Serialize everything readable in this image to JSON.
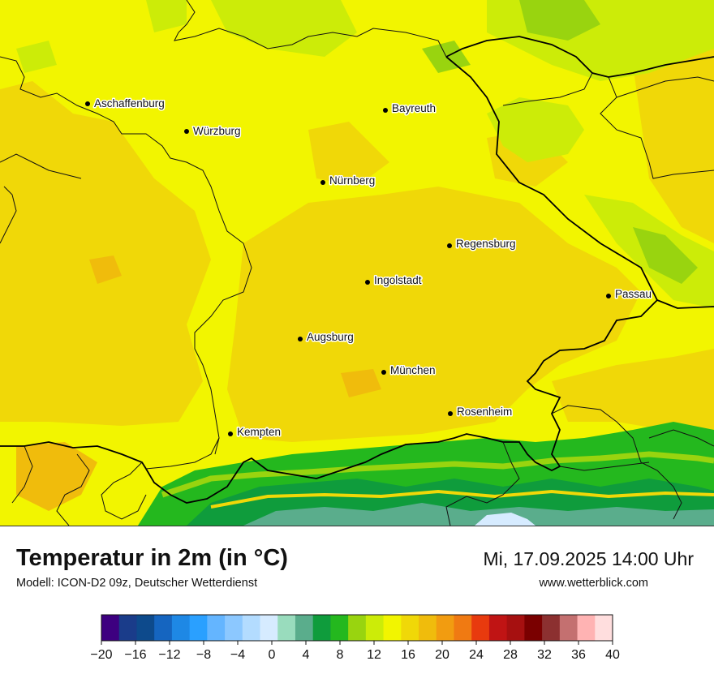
{
  "title": "Temperatur in 2m (in °C)",
  "subtitle": "Modell: ICON-D2 09z, Deutscher Wetterdienst",
  "datetime": "Mi, 17.09.2025 14:00 Uhr",
  "website": "www.wetterblick.com",
  "cities": [
    {
      "name": "Aschaffenburg"
    },
    {
      "name": "Würzburg"
    },
    {
      "name": "Bayreuth"
    },
    {
      "name": "Nürnberg"
    },
    {
      "name": "Regensburg"
    },
    {
      "name": "Ingolstadt"
    },
    {
      "name": "Passau"
    },
    {
      "name": "Augsburg"
    },
    {
      "name": "München"
    },
    {
      "name": "Rosenheim"
    },
    {
      "name": "Kempten"
    }
  ],
  "legend": {
    "colors": [
      "#3d0080",
      "#1a3c8a",
      "#0d4a8c",
      "#1565c0",
      "#1e88e5",
      "#2aa0ff",
      "#64b5ff",
      "#8cc8ff",
      "#b3dcff",
      "#d6ebff",
      "#99dcbd",
      "#5aad8c",
      "#0f9c3c",
      "#24b81e",
      "#99d40f",
      "#ccec08",
      "#f2f500",
      "#f0d808",
      "#f0bc0c",
      "#f29c10",
      "#f07a12",
      "#e83a0e",
      "#c01414",
      "#a61010",
      "#7a0000",
      "#8c3030",
      "#c47070",
      "#ffb3b3",
      "#ffdede"
    ],
    "tick_labels": [
      "−20",
      "−16",
      "−12",
      "−8",
      "−4",
      "0",
      "4",
      "8",
      "12",
      "16",
      "20",
      "24",
      "28",
      "32",
      "36",
      "40"
    ]
  }
}
